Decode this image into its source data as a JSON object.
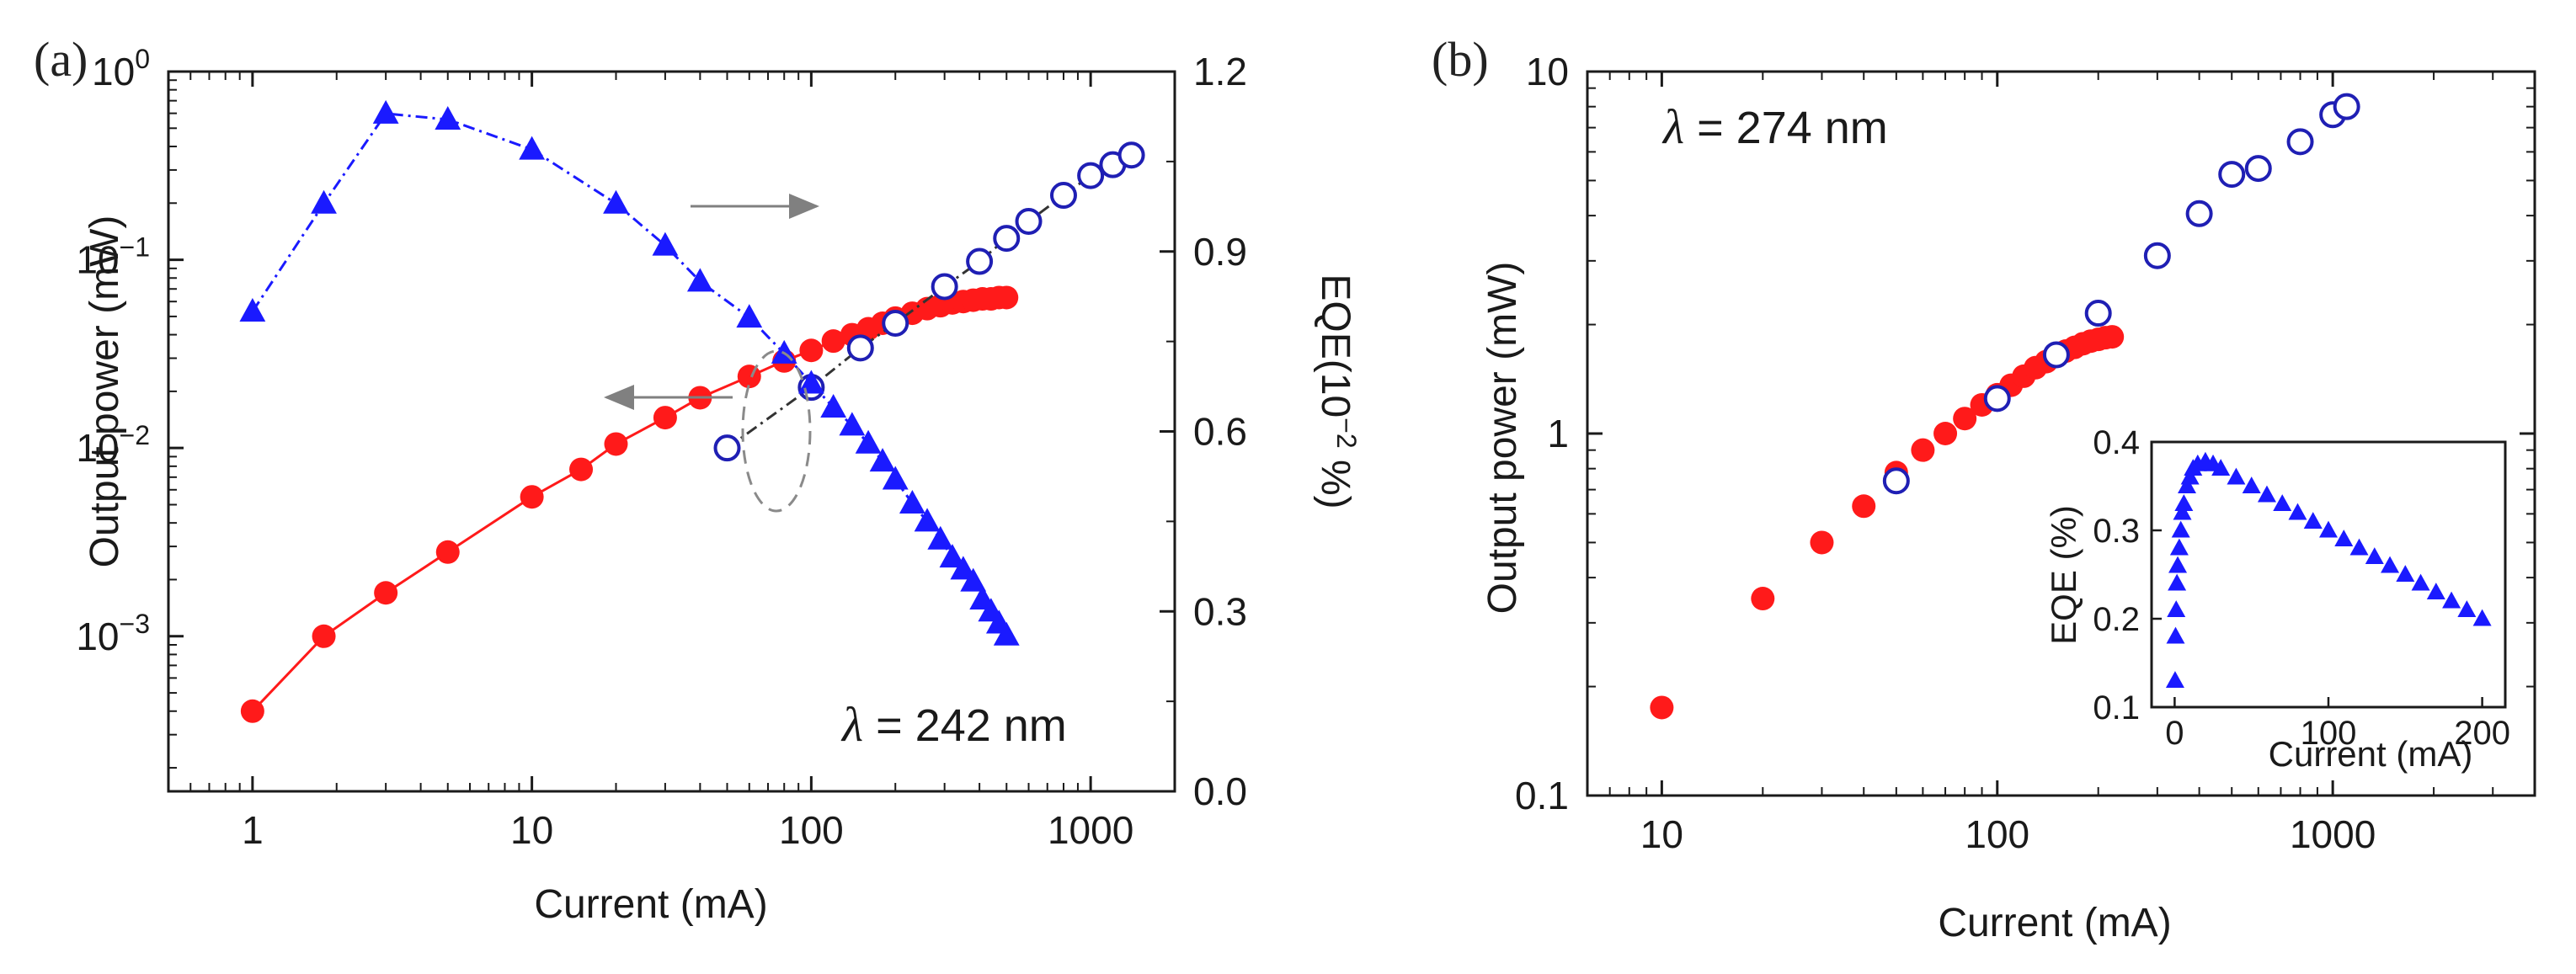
{
  "colors": {
    "red_series": "#ff1a1a",
    "blue_open": "#1f1fb4",
    "blue_triangle": "#1a1aff",
    "arrow": "#808080",
    "ellipse": "#8a8a8a",
    "axis": "#1a1a1a"
  },
  "chart_data": [
    {
      "panel_label": "(a)",
      "type": "scatter",
      "xlabel": "Current (mA)",
      "ylabel": "Output power (mW)",
      "y2label_prefix": "EQE(10",
      "y2label_exp": "−2",
      "y2label_suffix": " %)",
      "xscale": "log",
      "yscale": "log",
      "xlim": [
        0.5,
        2000
      ],
      "ylim": [
        0.00015,
        1
      ],
      "y2lim": [
        0,
        1.2
      ],
      "x_ticks": [
        {
          "v": 1,
          "label": "1"
        },
        {
          "v": 10,
          "label": "10"
        },
        {
          "v": 100,
          "label": "100"
        },
        {
          "v": 1000,
          "label": "1000"
        }
      ],
      "y_ticks": [
        {
          "v": 0.001,
          "base": "10",
          "exp": "−3"
        },
        {
          "v": 0.01,
          "base": "10",
          "exp": "−2"
        },
        {
          "v": 0.1,
          "base": "10",
          "exp": "−1"
        },
        {
          "v": 1,
          "base": "10",
          "exp": "0"
        }
      ],
      "y2_ticks": [
        {
          "v": 0.0,
          "label": "0.0"
        },
        {
          "v": 0.3,
          "label": "0.3"
        },
        {
          "v": 0.6,
          "label": "0.6"
        },
        {
          "v": 0.9,
          "label": "0.9"
        },
        {
          "v": 1.2,
          "label": "1.2"
        }
      ],
      "annotation_prefix": "λ",
      "annotation_text": " = 242 nm",
      "series": [
        {
          "marker": "filled-circle",
          "color": "#ff1a1a",
          "axis": "left",
          "x": [
            1,
            1.8,
            3,
            5,
            10,
            15,
            20,
            30,
            40,
            60,
            80,
            100,
            120,
            140,
            160,
            180,
            200,
            230,
            260,
            290,
            320,
            350,
            380,
            410,
            440,
            470,
            500
          ],
          "y": [
            0.0004,
            0.001,
            0.0017,
            0.0028,
            0.0055,
            0.0077,
            0.0105,
            0.0145,
            0.0185,
            0.024,
            0.029,
            0.033,
            0.037,
            0.04,
            0.043,
            0.046,
            0.049,
            0.052,
            0.055,
            0.057,
            0.059,
            0.06,
            0.061,
            0.062,
            0.062,
            0.063,
            0.063
          ]
        },
        {
          "marker": "open-circle",
          "color": "#1f1fb4",
          "axis": "left",
          "x": [
            50,
            100,
            150,
            200,
            300,
            400,
            500,
            600,
            800,
            1000,
            1200,
            1400
          ],
          "y": [
            0.01,
            0.021,
            0.034,
            0.046,
            0.072,
            0.098,
            0.13,
            0.16,
            0.22,
            0.28,
            0.32,
            0.36
          ]
        },
        {
          "marker": "filled-triangle",
          "color": "#1a1aff",
          "axis": "right",
          "x": [
            1,
            1.8,
            3,
            5,
            10,
            20,
            30,
            40,
            60,
            80,
            100,
            120,
            140,
            160,
            180,
            200,
            230,
            260,
            290,
            320,
            350,
            380,
            410,
            440,
            470,
            500
          ],
          "y": [
            0.8,
            0.98,
            1.13,
            1.12,
            1.07,
            0.98,
            0.91,
            0.85,
            0.79,
            0.73,
            0.68,
            0.64,
            0.61,
            0.58,
            0.55,
            0.52,
            0.48,
            0.45,
            0.42,
            0.39,
            0.37,
            0.35,
            0.32,
            0.3,
            0.28,
            0.26
          ]
        }
      ]
    },
    {
      "panel_label": "(b)",
      "type": "scatter",
      "xlabel": "Current (mA)",
      "ylabel": "Output power (mW)",
      "xscale": "log",
      "yscale": "log",
      "xlim": [
        6,
        4000
      ],
      "ylim": [
        0.1,
        10
      ],
      "x_ticks": [
        {
          "v": 10,
          "label": "10"
        },
        {
          "v": 100,
          "label": "100"
        },
        {
          "v": 1000,
          "label": "1000"
        }
      ],
      "y_ticks": [
        {
          "v": 0.1,
          "label": "0.1"
        },
        {
          "v": 1,
          "label": "1"
        },
        {
          "v": 10,
          "label": "10"
        }
      ],
      "annotation_prefix": "λ",
      "annotation_text": " = 274 nm",
      "series": [
        {
          "marker": "filled-circle",
          "color": "#ff1a1a",
          "x": [
            10,
            20,
            30,
            40,
            50,
            60,
            70,
            80,
            90,
            100,
            110,
            120,
            130,
            140,
            150,
            160,
            170,
            180,
            190,
            200,
            210,
            220
          ],
          "y": [
            0.175,
            0.35,
            0.5,
            0.63,
            0.78,
            0.9,
            1.0,
            1.1,
            1.2,
            1.28,
            1.36,
            1.44,
            1.52,
            1.58,
            1.64,
            1.69,
            1.73,
            1.77,
            1.8,
            1.82,
            1.84,
            1.85
          ]
        },
        {
          "marker": "open-circle",
          "color": "#1f1fb4",
          "x": [
            50,
            100,
            150,
            200,
            300,
            400,
            500,
            600,
            800,
            1000,
            1100
          ],
          "y": [
            0.74,
            1.25,
            1.65,
            2.15,
            3.1,
            4.05,
            5.2,
            5.4,
            6.4,
            7.6,
            8.0
          ]
        }
      ],
      "inset": {
        "type": "scatter",
        "xlabel": "Current (mA)",
        "ylabel": "EQE (%)",
        "xlim": [
          -15,
          215
        ],
        "ylim": [
          0.1,
          0.4
        ],
        "x_ticks": [
          {
            "v": 0,
            "label": "0"
          },
          {
            "v": 100,
            "label": "100"
          },
          {
            "v": 200,
            "label": "200"
          }
        ],
        "y_ticks": [
          {
            "v": 0.1,
            "label": "0.1"
          },
          {
            "v": 0.2,
            "label": "0.2"
          },
          {
            "v": 0.3,
            "label": "0.3"
          },
          {
            "v": 0.4,
            "label": "0.4"
          }
        ],
        "series": [
          {
            "marker": "filled-triangle",
            "color": "#1a1aff",
            "x": [
              0.3,
              0.6,
              1,
              1.5,
              2,
              3,
              4,
              5,
              6,
              8,
              10,
              12,
              15,
              20,
              25,
              30,
              40,
              50,
              60,
              70,
              80,
              90,
              100,
              110,
              120,
              130,
              140,
              150,
              160,
              170,
              180,
              190,
              200
            ],
            "y": [
              0.13,
              0.18,
              0.21,
              0.24,
              0.26,
              0.28,
              0.3,
              0.32,
              0.33,
              0.35,
              0.36,
              0.37,
              0.375,
              0.378,
              0.375,
              0.37,
              0.36,
              0.35,
              0.34,
              0.33,
              0.32,
              0.31,
              0.3,
              0.29,
              0.28,
              0.27,
              0.26,
              0.25,
              0.24,
              0.23,
              0.22,
              0.21,
              0.2
            ]
          }
        ]
      }
    }
  ]
}
